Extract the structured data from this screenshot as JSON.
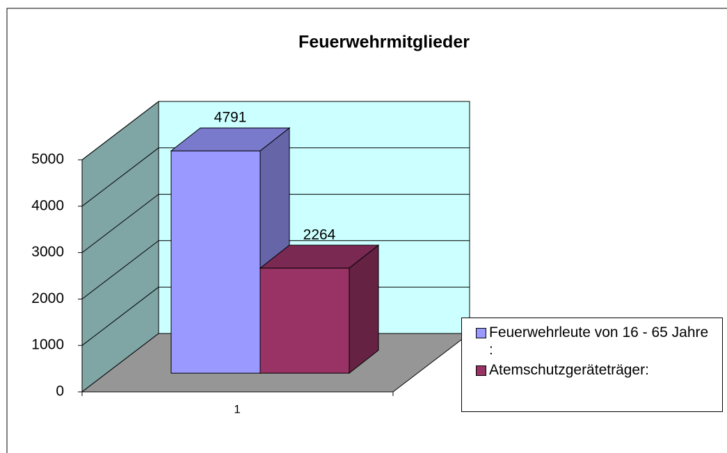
{
  "chart_data": {
    "type": "bar3d",
    "title": "Feuerwehrmitglieder",
    "categories": [
      "1"
    ],
    "series": [
      {
        "name": "Feuerwehrleute von 16 - 65 Jahre :",
        "color": "#9999ff",
        "values": [
          4791
        ]
      },
      {
        "name": "Atemschutzgeräteträger:",
        "color": "#993366",
        "values": [
          2264
        ]
      }
    ],
    "ylim": [
      0,
      5000
    ],
    "yticks": [
      0,
      1000,
      2000,
      3000,
      4000,
      5000
    ],
    "grid": true,
    "legend": "right"
  }
}
